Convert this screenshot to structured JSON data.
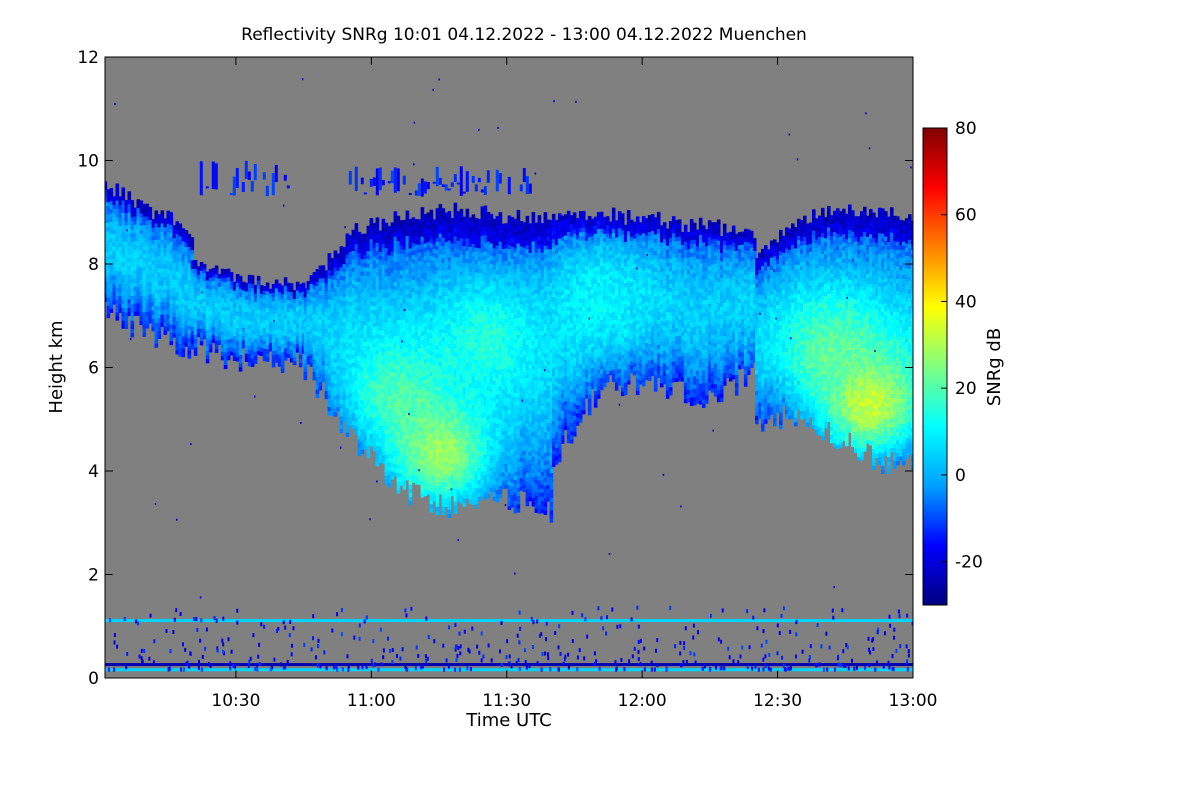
{
  "chart_data": {
    "type": "heatmap",
    "title": "Reflectivity SNRg   10:01 04.12.2022 - 13:00 04.12.2022 Muenchen",
    "xlabel": "Time UTC",
    "ylabel": "Height km",
    "colorbar_label": "SNRg dB",
    "xlim": [
      "10:01",
      "13:00"
    ],
    "ylim": [
      0,
      12
    ],
    "x_ticks": [
      {
        "value": 30,
        "label": "10:30"
      },
      {
        "value": 60,
        "label": "11:00"
      },
      {
        "value": 90,
        "label": "11:30"
      },
      {
        "value": 120,
        "label": "12:00"
      },
      {
        "value": 150,
        "label": "12:30"
      },
      {
        "value": 180,
        "label": "13:00"
      }
    ],
    "y_ticks": [
      {
        "value": 0,
        "label": "0"
      },
      {
        "value": 2,
        "label": "2"
      },
      {
        "value": 4,
        "label": "4"
      },
      {
        "value": 6,
        "label": "6"
      },
      {
        "value": 8,
        "label": "8"
      },
      {
        "value": 10,
        "label": "10"
      },
      {
        "value": 12,
        "label": "12"
      }
    ],
    "colorbar": {
      "range": [
        -30,
        80
      ],
      "ticks": [
        {
          "value": -20,
          "label": "-20"
        },
        {
          "value": 0,
          "label": "0"
        },
        {
          "value": 20,
          "label": "20"
        },
        {
          "value": 40,
          "label": "40"
        },
        {
          "value": 60,
          "label": "60"
        },
        {
          "value": 80,
          "label": "80"
        }
      ],
      "colors": [
        "#000080",
        "#0000ff",
        "#00a0ff",
        "#00ffff",
        "#80ff80",
        "#ffff00",
        "#ff8000",
        "#ff0000",
        "#800000"
      ]
    },
    "background_color": "#808080",
    "cloud_bands": [
      {
        "t_start": 0,
        "t_end": 20,
        "top": [
          9.5,
          9.3,
          9.0,
          8.9,
          8.5
        ],
        "bottom": [
          7.1,
          6.9,
          6.7,
          6.5,
          6.3
        ]
      },
      {
        "t_start": 20,
        "t_end": 45,
        "top": [
          8.0,
          7.8,
          7.6,
          7.5
        ],
        "bottom": [
          6.4,
          6.2,
          6.1,
          6.1
        ]
      },
      {
        "t_start": 45,
        "t_end": 100,
        "top": [
          7.5,
          8.6,
          8.9,
          9.0,
          8.9,
          8.8
        ],
        "bottom": [
          6.0,
          4.6,
          3.6,
          3.3,
          3.5,
          3.2
        ]
      },
      {
        "t_start": 100,
        "t_end": 145,
        "top": [
          8.9,
          8.9,
          8.8,
          8.7,
          8.6
        ],
        "bottom": [
          4.2,
          5.7,
          5.7,
          5.4,
          5.9
        ]
      },
      {
        "t_start": 145,
        "t_end": 180,
        "top": [
          8.2,
          8.8,
          9.0,
          9.0,
          8.9
        ],
        "bottom": [
          4.9,
          5.1,
          4.7,
          4.2,
          4.2
        ]
      }
    ],
    "cores": [
      {
        "t": 65,
        "h": 5.5,
        "value": 18
      },
      {
        "t": 75,
        "h": 4.3,
        "value": 28
      },
      {
        "t": 85,
        "h": 6.5,
        "value": 15
      },
      {
        "t": 110,
        "h": 7.2,
        "value": 10
      },
      {
        "t": 170,
        "h": 5.3,
        "value": 33
      },
      {
        "t": 162,
        "h": 6.3,
        "value": 22
      }
    ],
    "upper_patches": [
      {
        "t_start": 22,
        "t_end": 42,
        "h_start": 9.3,
        "h_end": 10.0
      },
      {
        "t_start": 55,
        "t_end": 95,
        "h_start": 9.3,
        "h_end": 9.9
      }
    ],
    "low_layers": [
      {
        "h": 0.25,
        "value": -25
      },
      {
        "h": 0.15,
        "value": 5
      },
      {
        "h": 1.1,
        "value": 5
      }
    ]
  }
}
